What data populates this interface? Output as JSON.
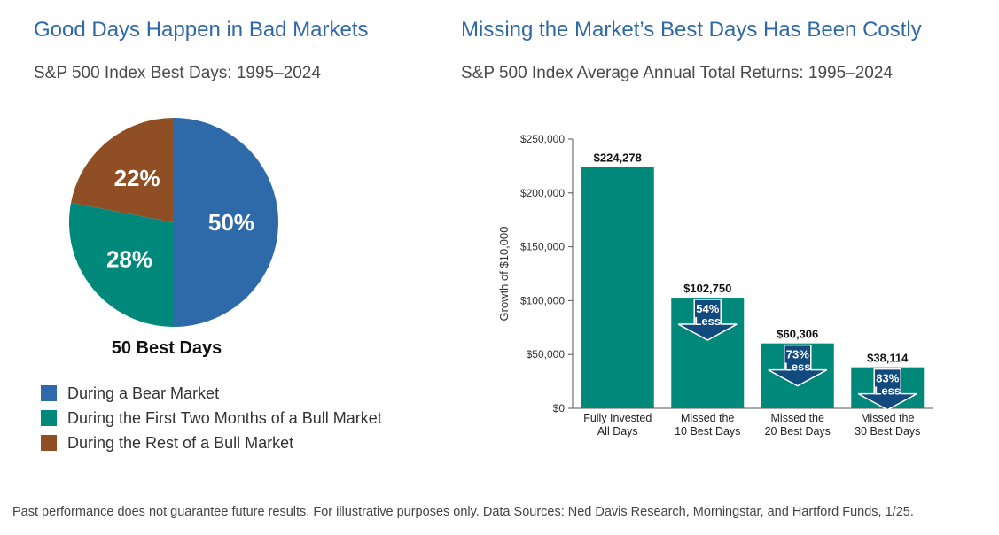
{
  "left": {
    "title": "Good Days Happen in Bad Markets",
    "subtitle": "S&P 500 Index Best Days: 1995–2024",
    "caption": "50 Best Days",
    "legend": [
      {
        "label": "During a Bear Market",
        "color": "#2e6aaa"
      },
      {
        "label": "During the First Two Months of a Bull Market",
        "color": "#00897a"
      },
      {
        "label": "During the Rest of a Bull Market",
        "color": "#8f4e24"
      }
    ]
  },
  "right": {
    "title": "Missing the Market’s Best Days Has Been Costly",
    "subtitle": "S&P 500 Index Average Annual Total Returns: 1995–2024"
  },
  "footnote": "Past performance does not guarantee future results. For illustrative purposes only. Data Sources: Ned Davis Research, Morningstar, and Hartford Funds, 1/25.",
  "chart_data": [
    {
      "type": "pie",
      "title": "50 Best Days",
      "slices": [
        {
          "label": "During a Bear Market",
          "value": 50,
          "text": "50%",
          "color": "#2e6aaa"
        },
        {
          "label": "During the First Two Months of a Bull Market",
          "value": 28,
          "text": "28%",
          "color": "#00897a"
        },
        {
          "label": "During the Rest of a Bull Market",
          "value": 22,
          "text": "22%",
          "color": "#8f4e24"
        }
      ]
    },
    {
      "type": "bar",
      "ylabel": "Growth of $10,000",
      "ylim": [
        0,
        250000
      ],
      "yticks": [
        0,
        50000,
        100000,
        150000,
        200000,
        250000
      ],
      "ytick_labels": [
        "$0",
        "$50,000",
        "$100,000",
        "$150,000",
        "$200,000",
        "$250,000"
      ],
      "bar_color": "#00897a",
      "arrow_color": "#12497e",
      "categories": [
        [
          "Fully Invested",
          "All Days"
        ],
        [
          "Missed the",
          "10 Best Days"
        ],
        [
          "Missed the",
          "20 Best Days"
        ],
        [
          "Missed the",
          "30 Best Days"
        ]
      ],
      "values": [
        224278,
        102750,
        60306,
        38114
      ],
      "value_labels": [
        "$224,278",
        "$102,750",
        "$60,306",
        "$38,114"
      ],
      "annotations": [
        null,
        [
          "54%",
          "Less"
        ],
        [
          "73%",
          "Less"
        ],
        [
          "83%",
          "Less"
        ]
      ]
    }
  ]
}
